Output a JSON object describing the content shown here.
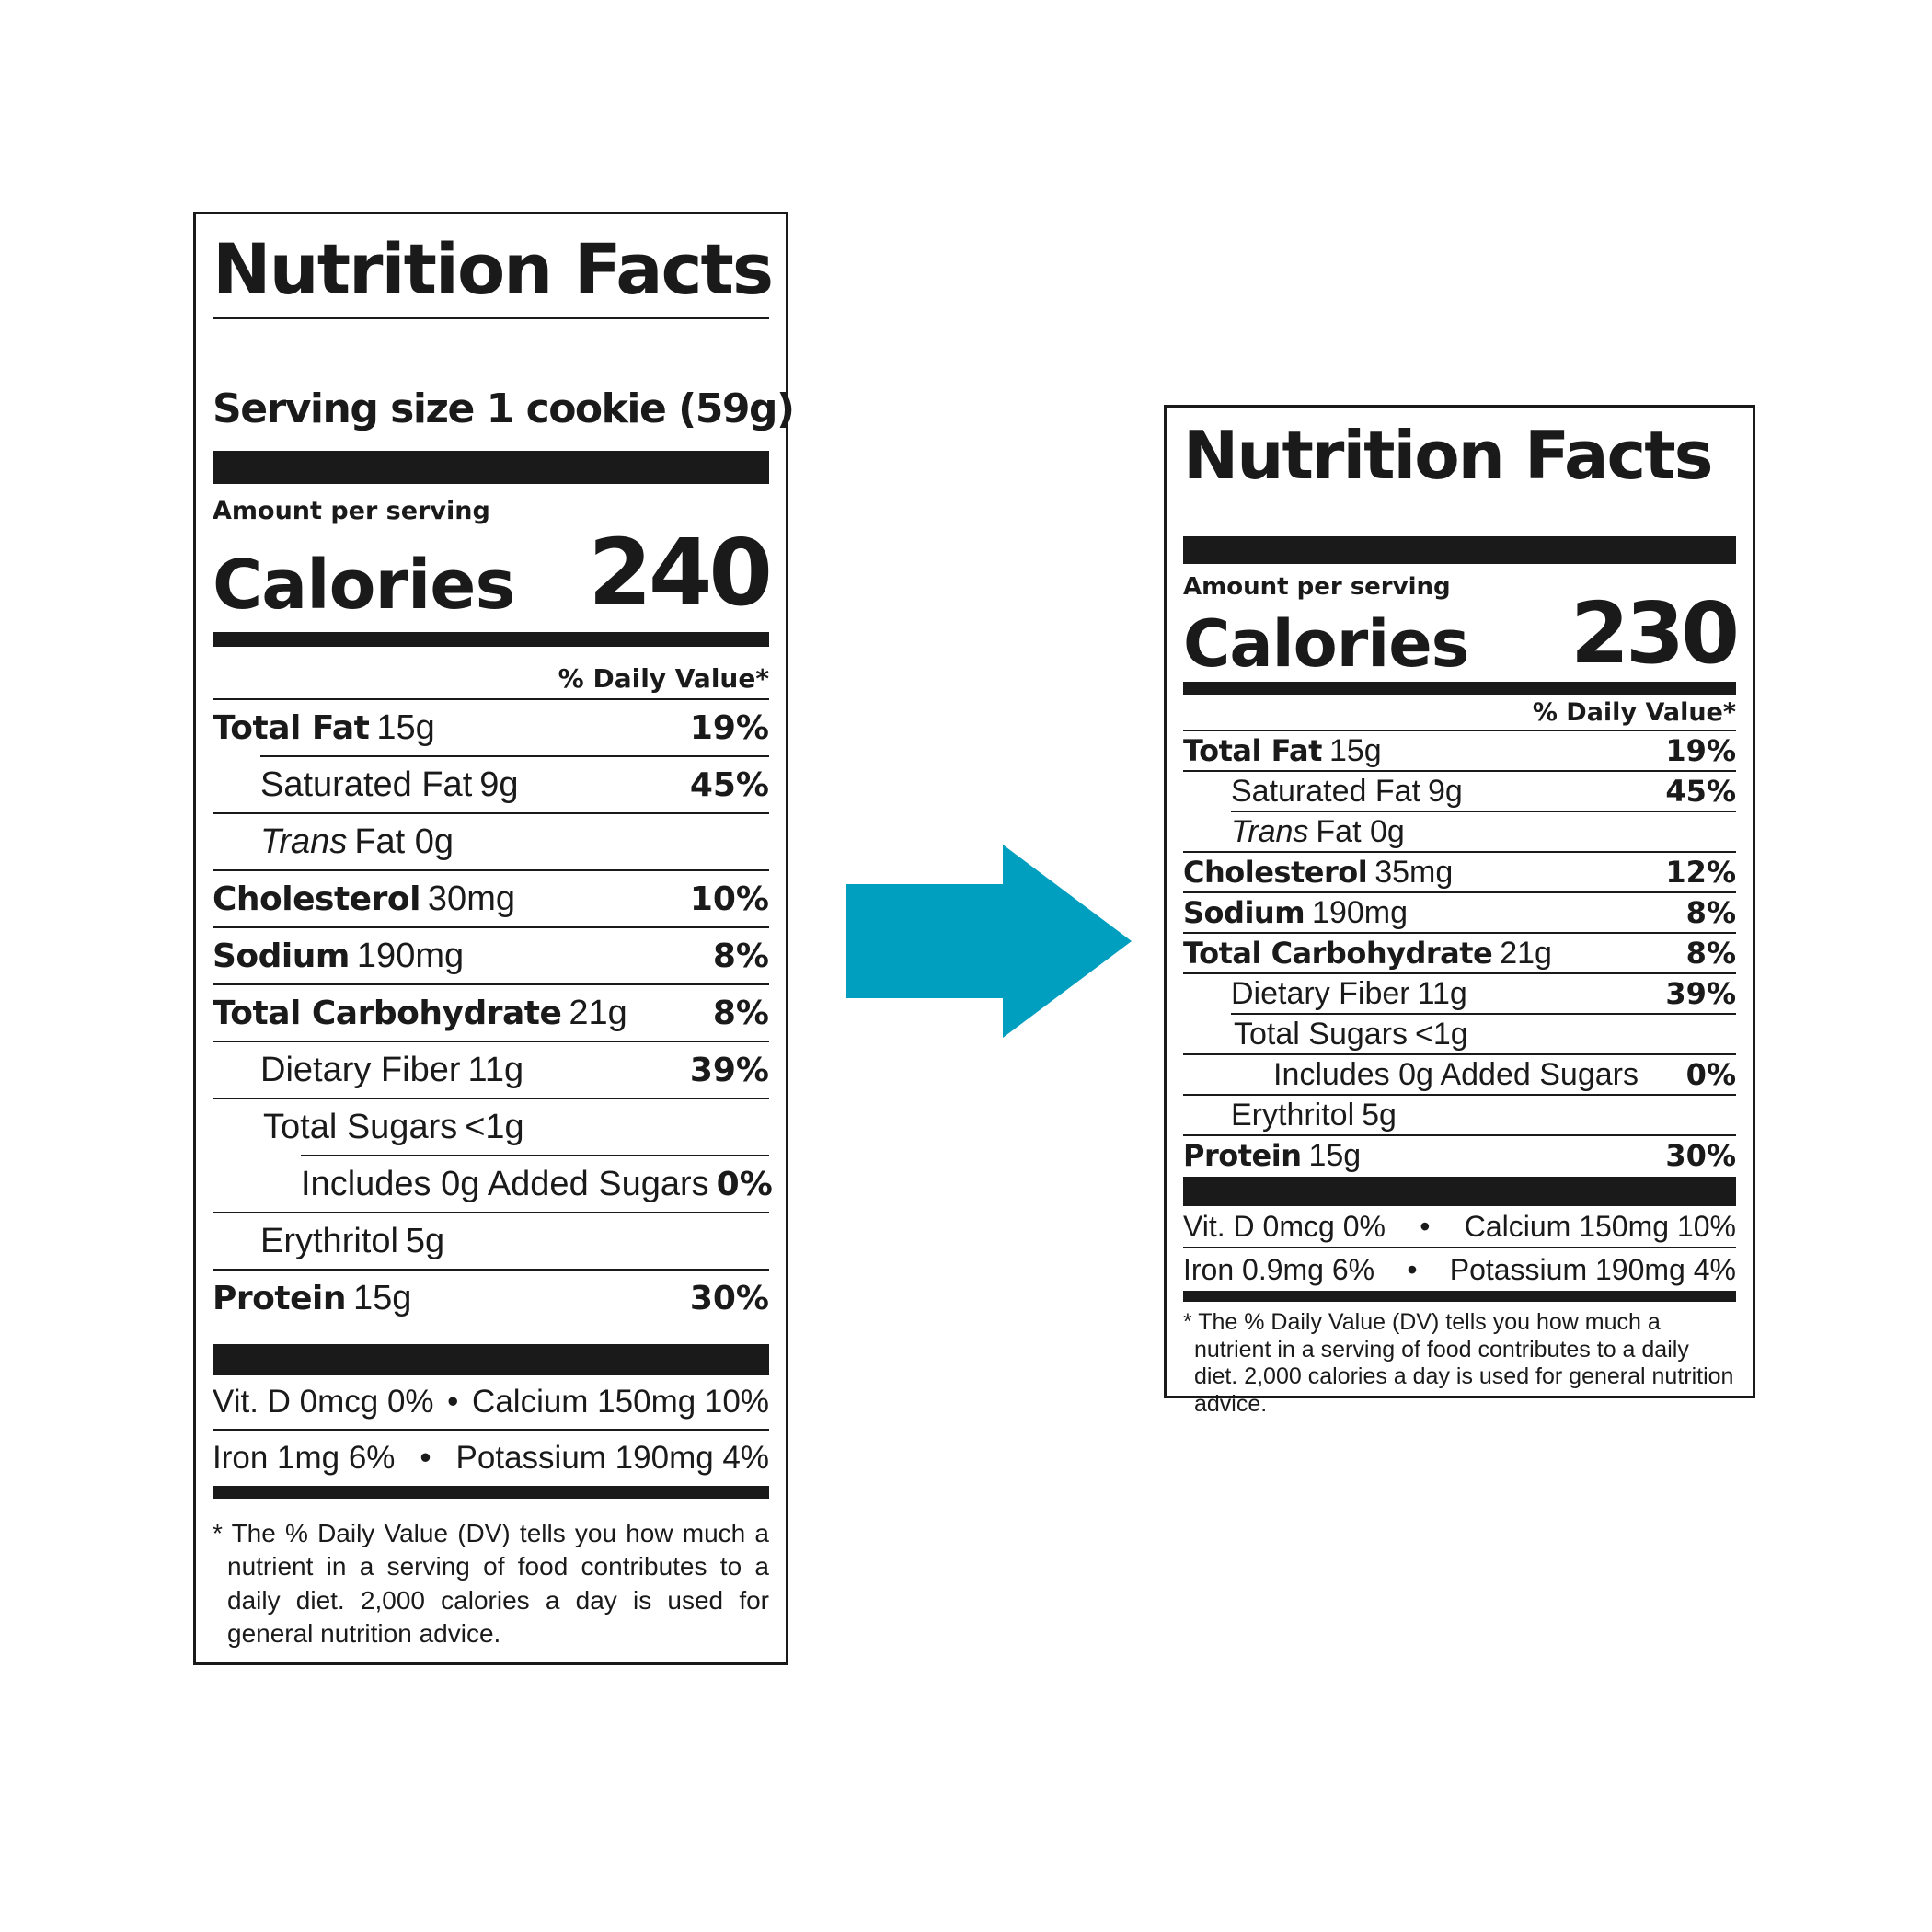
{
  "colors": {
    "arrow": "#009fbf",
    "ink": "#1a1a1a"
  },
  "left_label": {
    "title": "Nutrition Facts",
    "serving_size": "Serving size 1 cookie (59g)",
    "amount_per_serving": "Amount per serving",
    "calories_label": "Calories",
    "calories_value": "240",
    "daily_value_header": "% Daily Value*",
    "nutrients": [
      {
        "name": "Total Fat",
        "amount": "15g",
        "dv": "19%"
      },
      {
        "name": "Saturated Fat",
        "amount": "9g",
        "dv": "45%"
      },
      {
        "name": "Trans",
        "amount": "Fat 0g",
        "dv": ""
      },
      {
        "name": "Cholesterol",
        "amount": "30mg",
        "dv": "10%"
      },
      {
        "name": "Sodium",
        "amount": "190mg",
        "dv": "8%"
      },
      {
        "name": "Total Carbohydrate",
        "amount": "21g",
        "dv": "8%"
      },
      {
        "name": "Dietary Fiber",
        "amount": "11g",
        "dv": "39%"
      },
      {
        "name": "Total Sugars",
        "amount": "<1g",
        "dv": ""
      },
      {
        "name": "Includes 0g Added Sugars",
        "amount": "",
        "dv": "0%"
      },
      {
        "name": "Erythritol",
        "amount": "5g",
        "dv": ""
      },
      {
        "name": "Protein",
        "amount": "15g",
        "dv": "30%"
      }
    ],
    "vitamins": [
      {
        "left": "Vit. D 0mcg 0%",
        "right": "Calcium 150mg 10%"
      },
      {
        "left": "Iron 1mg 6%",
        "right": "Potassium 190mg 4%"
      }
    ],
    "bullet": "•",
    "footnote": "* The % Daily Value (DV) tells you how much a nutrient in a serving of food contributes to a daily diet. 2,000 calories a day is used for general nutrition advice."
  },
  "right_label": {
    "title": "Nutrition Facts",
    "amount_per_serving": "Amount per serving",
    "calories_label": "Calories",
    "calories_value": "230",
    "daily_value_header": "% Daily Value*",
    "nutrients": [
      {
        "name": "Total Fat",
        "amount": "15g",
        "dv": "19%"
      },
      {
        "name": "Saturated Fat",
        "amount": "9g",
        "dv": "45%"
      },
      {
        "name": "Trans",
        "amount": "Fat 0g",
        "dv": ""
      },
      {
        "name": "Cholesterol",
        "amount": "35mg",
        "dv": "12%"
      },
      {
        "name": "Sodium",
        "amount": "190mg",
        "dv": "8%"
      },
      {
        "name": "Total Carbohydrate",
        "amount": "21g",
        "dv": "8%"
      },
      {
        "name": "Dietary Fiber",
        "amount": "11g",
        "dv": "39%"
      },
      {
        "name": "Total Sugars",
        "amount": "<1g",
        "dv": ""
      },
      {
        "name": "Includes 0g Added Sugars",
        "amount": "",
        "dv": "0%"
      },
      {
        "name": "Erythritol",
        "amount": "5g",
        "dv": ""
      },
      {
        "name": "Protein",
        "amount": "15g",
        "dv": "30%"
      }
    ],
    "vitamins": [
      {
        "left": "Vit. D 0mcg 0%",
        "right": "Calcium 150mg 10%"
      },
      {
        "left": "Iron 0.9mg 6%",
        "right": "Potassium 190mg 4%"
      }
    ],
    "bullet": "•",
    "footnote": "* The % Daily Value (DV) tells you how much a nutrient in a serving of food contributes to a daily diet. 2,000 calories a day is used for general nutrition advice."
  }
}
